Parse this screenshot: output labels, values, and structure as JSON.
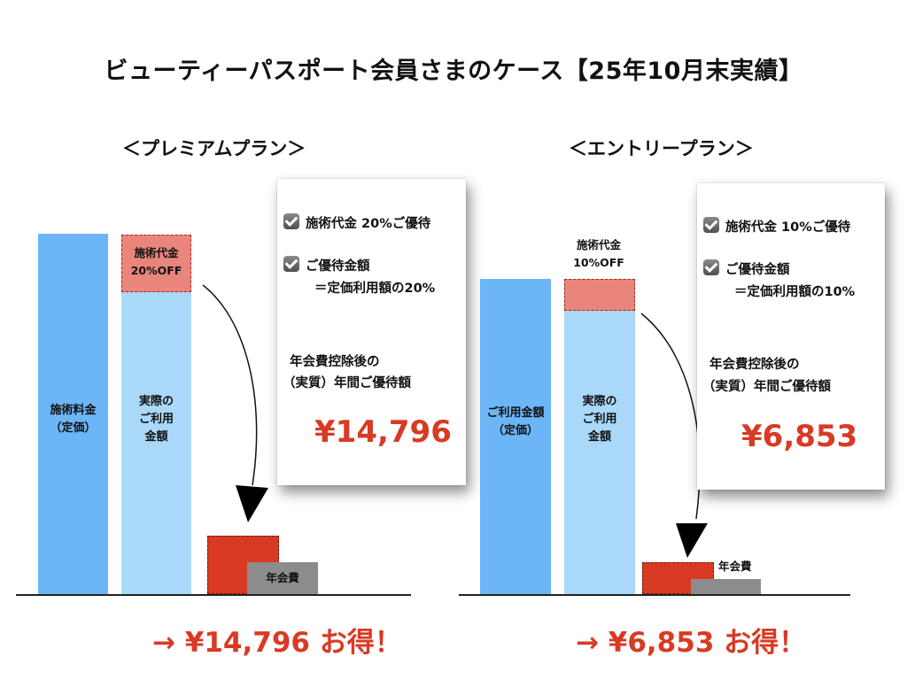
{
  "title": "ビューティーパスポート会員さまのケース【25年10月末実績】",
  "premium": {
    "heading": "＜プレミアムプラン＞",
    "bar_list_label_1": "施術料金",
    "bar_list_label_2": "（定価）",
    "bar_actual_label_1": "実際の",
    "bar_actual_label_2": "ご利用",
    "bar_actual_label_3": "金額",
    "discount_label_1": "施術代金",
    "discount_label_2": "20%OFF",
    "fee_label": "年会費",
    "card_item1": "施術代金 20%ご優待",
    "card_item2_line1": "ご優待金額",
    "card_item2_line2": "＝定価利用額の20%",
    "card_caption_1": "年会費控除後の",
    "card_caption_2": "（実質）年間ご優待額",
    "card_amount": "¥14,796",
    "deal": "→ ¥14,796 お得！"
  },
  "entry": {
    "heading": "＜エントリープラン＞",
    "bar_list_label_1": "ご利用金額",
    "bar_list_label_2": "（定価）",
    "bar_actual_label_1": "実際の",
    "bar_actual_label_2": "ご利用",
    "bar_actual_label_3": "金額",
    "discount_label_1": "施術代金",
    "discount_label_2": "10%OFF",
    "fee_label": "年会費",
    "card_item1": "施術代金 10%ご優待",
    "card_item2_line1": "ご優待金額",
    "card_item2_line2": "＝定価利用額の10%",
    "card_caption_1": "年会費控除後の",
    "card_caption_2": "（実質）年間ご優待額",
    "card_amount": "¥6,853",
    "deal": "→ ¥6,853 お得！"
  },
  "colors": {
    "list_price_bar": "#6cb6f7",
    "actual_bar": "#aad8f9",
    "discount": "#e9857a",
    "saving": "#d83a24",
    "fee": "#8c8c8c",
    "accent_text": "#d83a24"
  }
}
